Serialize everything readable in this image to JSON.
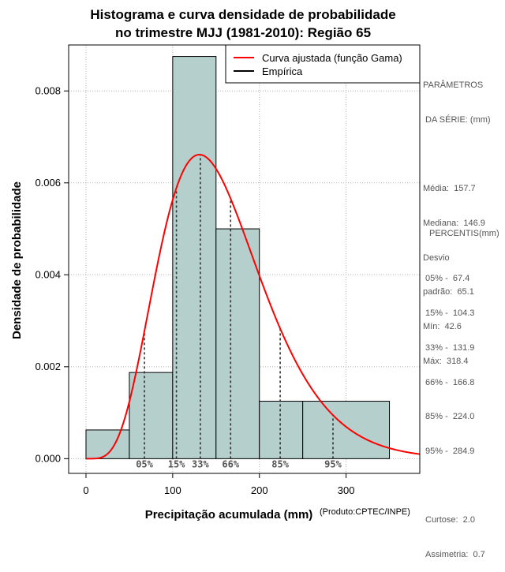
{
  "chart_data": {
    "type": "histogram",
    "title": [
      "Histograma e curva densidade de probabilidade",
      "no trimestre MJJ (1981-2010): Região 65"
    ],
    "xlabel": "Precipitação acumulada (mm)",
    "ylabel": "Densidade de probabilidade",
    "credit": "(Produto:CPTEC/INPE)",
    "xlim": [
      -20,
      385
    ],
    "ylim": [
      -0.00032,
      0.009
    ],
    "x_ticks": [
      0,
      100,
      200,
      300
    ],
    "y_ticks": [
      0.0,
      0.002,
      0.004,
      0.006,
      0.008
    ],
    "y_tick_labels": [
      "0.000",
      "0.002",
      "0.004",
      "0.006",
      "0.008"
    ],
    "grid": true,
    "bins": [
      {
        "start": 0,
        "end": 50,
        "density": 0.000625
      },
      {
        "start": 50,
        "end": 100,
        "density": 0.001875
      },
      {
        "start": 100,
        "end": 150,
        "density": 0.00875
      },
      {
        "start": 150,
        "end": 200,
        "density": 0.005
      },
      {
        "start": 200,
        "end": 250,
        "density": 0.00125
      },
      {
        "start": 250,
        "end": 350,
        "density": 0.00125
      }
    ],
    "gamma_fit": {
      "mean": 157.7,
      "sd": 65.1
    },
    "percentile_lines": [
      {
        "label": "05%",
        "value": 67.4
      },
      {
        "label": "15%",
        "value": 104.3
      },
      {
        "label": "33%",
        "value": 131.9
      },
      {
        "label": "66%",
        "value": 166.8
      },
      {
        "label": "85%",
        "value": 224.0
      },
      {
        "label": "95%",
        "value": 284.9
      }
    ],
    "legend": {
      "position": "top-right",
      "items": [
        {
          "label": "Curva ajustada (função Gama)",
          "color": "#ff0000"
        },
        {
          "label": "Empírica",
          "color": "#000000"
        }
      ]
    },
    "colors": {
      "bar_fill": "#b5cfcd",
      "curve": "#ff0000",
      "grid": "#b0b0b0"
    }
  },
  "side_panel": {
    "params_heading": [
      "PARÂMETROS",
      " DA SÉRIE: (mm)"
    ],
    "params": [
      "Média:  157.7",
      "Mediana:  146.9",
      "Desvio",
      "padrão:  65.1",
      "Mín:  42.6",
      "Máx:  318.4"
    ],
    "percentis_heading": "PERCENTIS(mm)",
    "percentis": [
      "05% -  67.4",
      "15% -  104.3",
      "33% -  131.9",
      "66% -  166.8",
      "85% -  224.0",
      "95% -  284.9"
    ],
    "stats": [
      "Curtose:  2.0",
      "Assimetria:  0.7"
    ]
  }
}
